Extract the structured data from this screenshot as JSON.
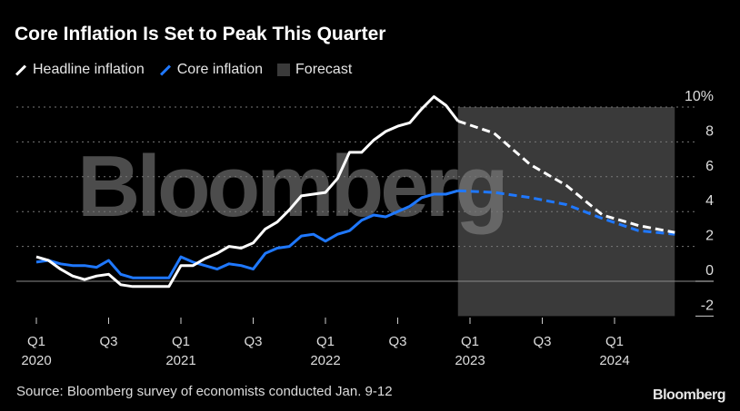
{
  "chart_data": {
    "type": "line",
    "title": "Core Inflation Is Set to Peak This Quarter",
    "legend": [
      {
        "label": "Headline inflation",
        "color": "#ffffff"
      },
      {
        "label": "Core inflation",
        "color": "#1f78ff"
      },
      {
        "label": "Forecast",
        "color": "#3a3a3a"
      }
    ],
    "legend_placement": "top-left",
    "ylim": [
      -2,
      10
    ],
    "yticks": [
      "10%",
      "8",
      "6",
      "4",
      "2",
      "0",
      "-2"
    ],
    "ytick_values": [
      10,
      8,
      6,
      4,
      2,
      0,
      -2
    ],
    "xticks": [
      {
        "q": "Q1",
        "y": "2020",
        "month": 0
      },
      {
        "q": "Q3",
        "y": "",
        "month": 6
      },
      {
        "q": "Q1",
        "y": "2021",
        "month": 12
      },
      {
        "q": "Q3",
        "y": "",
        "month": 18
      },
      {
        "q": "Q1",
        "y": "2022",
        "month": 24
      },
      {
        "q": "Q3",
        "y": "",
        "month": 30
      },
      {
        "q": "Q1",
        "y": "2023",
        "month": 36
      },
      {
        "q": "Q3",
        "y": "",
        "month": 42
      },
      {
        "q": "Q1",
        "y": "2024",
        "month": 48
      }
    ],
    "forecast_range_months": [
      35,
      53
    ],
    "series": [
      {
        "name": "Headline inflation",
        "actual": [
          1.4,
          1.2,
          0.7,
          0.3,
          0.1,
          0.3,
          0.4,
          -0.2,
          -0.3,
          -0.3,
          -0.3,
          -0.3,
          0.9,
          0.9,
          1.3,
          1.6,
          2.0,
          1.9,
          2.2,
          3.0,
          3.4,
          4.1,
          4.9,
          5.0,
          5.1,
          5.9,
          7.4,
          7.4,
          8.1,
          8.6,
          8.9,
          9.1,
          9.9,
          10.6,
          10.1,
          9.2
        ],
        "forecast_months": [
          35,
          38,
          41,
          44,
          47,
          50,
          53
        ],
        "forecast": [
          9.2,
          8.5,
          6.7,
          5.5,
          3.8,
          3.2,
          2.8
        ]
      },
      {
        "name": "Core inflation",
        "actual": [
          1.1,
          1.2,
          1.0,
          0.9,
          0.9,
          0.8,
          1.2,
          0.4,
          0.2,
          0.2,
          0.2,
          0.2,
          1.4,
          1.1,
          0.9,
          0.7,
          1.0,
          0.9,
          0.7,
          1.6,
          1.9,
          2.0,
          2.6,
          2.7,
          2.3,
          2.7,
          2.9,
          3.5,
          3.8,
          3.7,
          4.0,
          4.3,
          4.8,
          5.0,
          5.0,
          5.2
        ],
        "forecast_months": [
          35,
          38,
          41,
          44,
          47,
          50,
          53
        ],
        "forecast": [
          5.2,
          5.1,
          4.8,
          4.4,
          3.6,
          2.9,
          2.7
        ]
      }
    ],
    "source": "Source: Bloomberg survey of economists conducted Jan. 9-12",
    "watermark": "Bloomberg",
    "logo": "Bloomberg"
  }
}
